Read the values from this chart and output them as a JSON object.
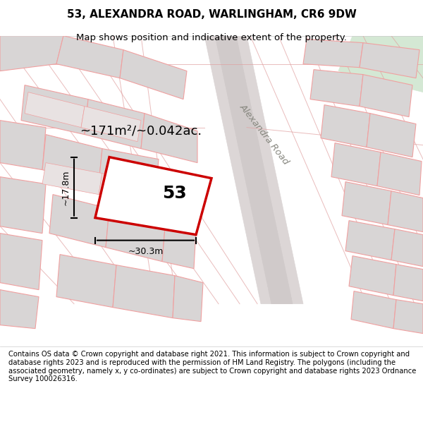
{
  "title": "53, ALEXANDRA ROAD, WARLINGHAM, CR6 9DW",
  "subtitle": "Map shows position and indicative extent of the property.",
  "footer": "Contains OS data © Crown copyright and database right 2021. This information is subject to Crown copyright and database rights 2023 and is reproduced with the permission of HM Land Registry. The polygons (including the associated geometry, namely x, y co-ordinates) are subject to Crown copyright and database rights 2023 Ordnance Survey 100026316.",
  "area_label": "~171m²/~0.042ac.",
  "number_label": "53",
  "dim_width": "~30.3m",
  "dim_height": "~17.8m",
  "road_label": "Alexandra Road",
  "bg_color": "#f5f5f5",
  "map_bg": "#f0eeee",
  "road_color": "#d4d0d0",
  "plot_line_color": "#cc0000",
  "plot_fill_color": "#ffffff",
  "block_fill_color": "#d8d5d5",
  "block_line_color": "#f0a0a0",
  "road_stripe_color": "#e8e0e0",
  "green_area_color": "#d4e8d4"
}
